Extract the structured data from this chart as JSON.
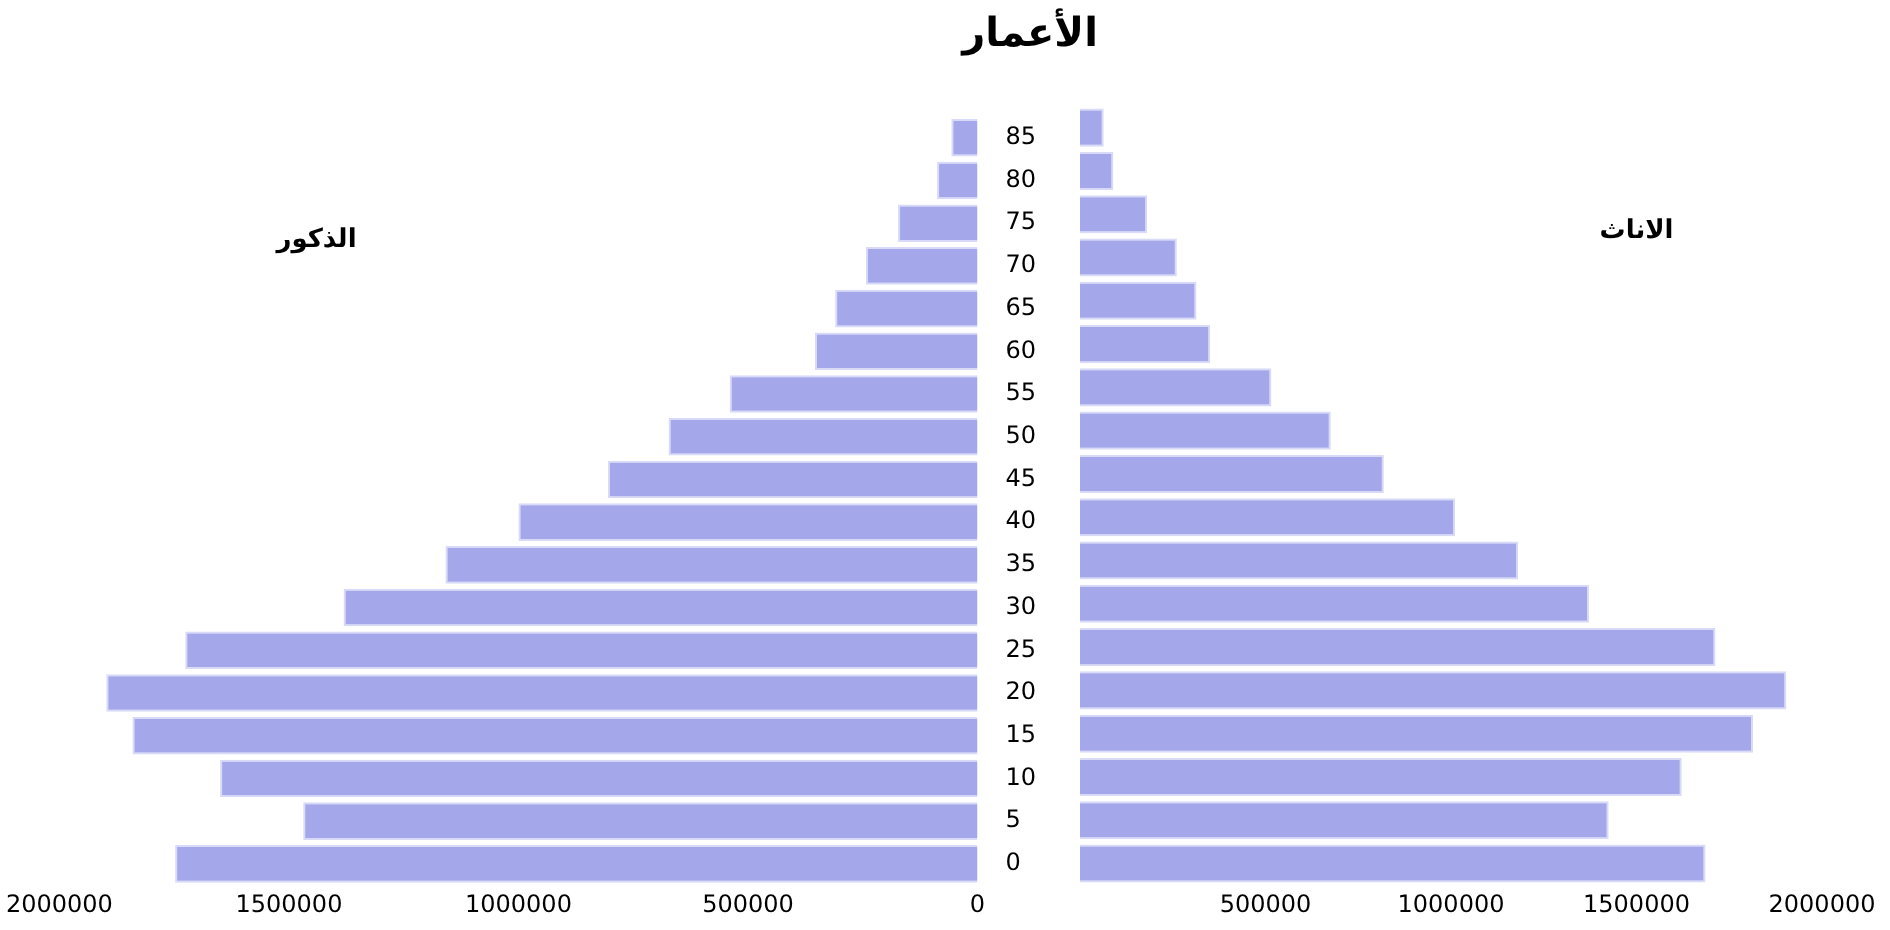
{
  "chart_data": [
    {
      "type": "bar",
      "orientation": "horizontal",
      "title": "الأعمار",
      "categories": [
        "85",
        "80",
        "75",
        "70",
        "65",
        "60",
        "55",
        "50",
        "45",
        "40",
        "35",
        "30",
        "25",
        "20",
        "15",
        "10",
        "5",
        "0"
      ],
      "series": [
        {
          "name": "الذكور",
          "color": "#a4a8ea",
          "values": [
            57000,
            88000,
            173000,
            243000,
            310000,
            354000,
            540000,
            673000,
            805000,
            1000000,
            1159000,
            1381000,
            1726000,
            1898000,
            1841000,
            1650000,
            1469000,
            1748000
          ]
        }
      ],
      "xlim": [
        2000000,
        0
      ],
      "xticks": [
        2000000,
        1500000,
        1000000,
        500000,
        0
      ],
      "grid": false,
      "legend": false
    },
    {
      "type": "bar",
      "orientation": "horizontal",
      "categories": [
        "85",
        "80",
        "75",
        "70",
        "65",
        "60",
        "55",
        "50",
        "45",
        "40",
        "35",
        "30",
        "25",
        "20",
        "15",
        "10",
        "5",
        "0"
      ],
      "series": [
        {
          "name": "الاناث",
          "color": "#a4a8ea",
          "values": [
            64000,
            90000,
            181000,
            261000,
            314000,
            351000,
            516000,
            676000,
            819000,
            1011000,
            1181000,
            1372000,
            1713000,
            1904000,
            1814000,
            1622000,
            1425000,
            1686000
          ]
        }
      ],
      "xlim": [
        0,
        2000000
      ],
      "xticks": [
        500000,
        1000000,
        1500000,
        2000000
      ],
      "grid": false,
      "legend": false,
      "tick_labels": "x"
    }
  ]
}
